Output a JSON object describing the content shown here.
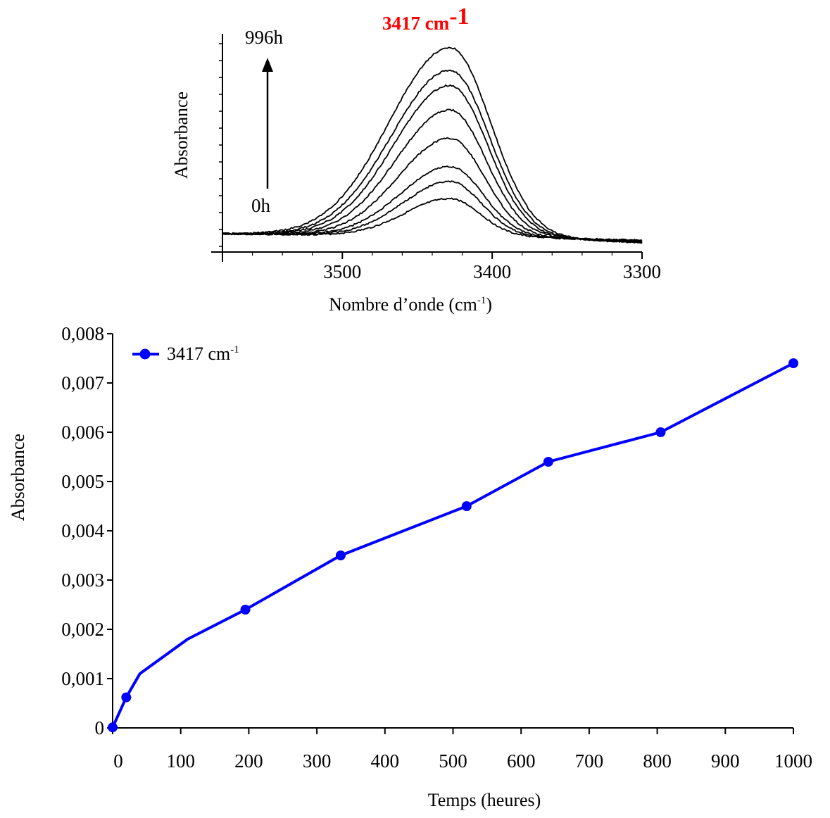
{
  "chart_data": [
    {
      "type": "line",
      "title": "3417 cm",
      "title_superscript": "-1",
      "title_color": "#ff0000",
      "xlabel": "Nombre d’onde (cm",
      "xlabel_superscript": "-1",
      "xlabel_close": ")",
      "ylabel": "Absorbance",
      "x_ticks": [
        "3500",
        "3400",
        "3300"
      ],
      "xlim": [
        3580,
        3300
      ],
      "x_reversed": true,
      "arrow_start_label": "0h",
      "arrow_end_label": "996h",
      "series_peak_heights": [
        0.2,
        0.29,
        0.37,
        0.52,
        0.67,
        0.8,
        0.88,
        1.0
      ],
      "peak_center": 3428,
      "line_color": "#000000"
    },
    {
      "type": "line",
      "xlabel": "Temps (heures)",
      "ylabel": "Absorbance",
      "xlim": [
        0,
        1000
      ],
      "ylim": [
        0,
        0.008
      ],
      "x_ticks": [
        "0",
        "100",
        "200",
        "300",
        "400",
        "500",
        "600",
        "700",
        "800",
        "900",
        "1000"
      ],
      "y_ticks": [
        "0",
        "0,001",
        "0,002",
        "0,003",
        "0,004",
        "0,005",
        "0,006",
        "0,007",
        "0,008"
      ],
      "legend_position": "top-left",
      "series": [
        {
          "name": "3417 cm",
          "name_superscript": "-1",
          "color": "#0000ff",
          "x": [
            0,
            20,
            40,
            110,
            195,
            335,
            520,
            640,
            805,
            1000
          ],
          "y": [
            1e-05,
            0.00062,
            0.0011,
            0.0018,
            0.0024,
            0.0035,
            0.0045,
            0.0054,
            0.006,
            0.0074
          ],
          "markers": [
            true,
            true,
            false,
            false,
            true,
            true,
            true,
            true,
            true,
            true
          ]
        }
      ]
    }
  ]
}
